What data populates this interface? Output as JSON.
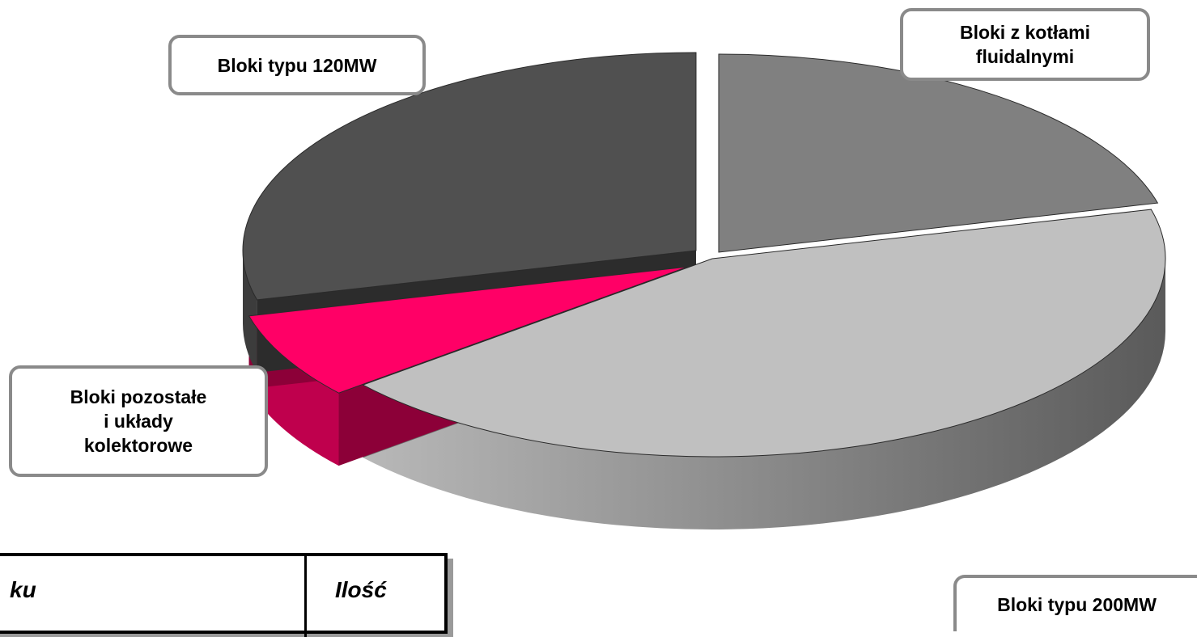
{
  "chart_data": {
    "type": "pie",
    "style": "3d-exploded",
    "slices": [
      {
        "label": "Bloki z kotłami fluidalnymi",
        "value": 21,
        "color": "#808080"
      },
      {
        "label": "Bloki typu 200MW",
        "value": 43,
        "color": "#c0c0c0"
      },
      {
        "label": "Bloki pozostałe i układy kolektorowe",
        "value": 7,
        "color": "#ff0066"
      },
      {
        "label": "Bloki typu 120MW",
        "value": 29,
        "color": "#505050"
      }
    ]
  },
  "callouts": {
    "fluid": "Bloki z kotłami\nfluidalnymi",
    "b120": "Bloki typu 120MW",
    "other": "Bloki pozostałe\ni układy\nkolektorowe",
    "b200": "Bloki typu 200MW"
  },
  "table": {
    "col1": "ku",
    "col2": "Ilość"
  }
}
